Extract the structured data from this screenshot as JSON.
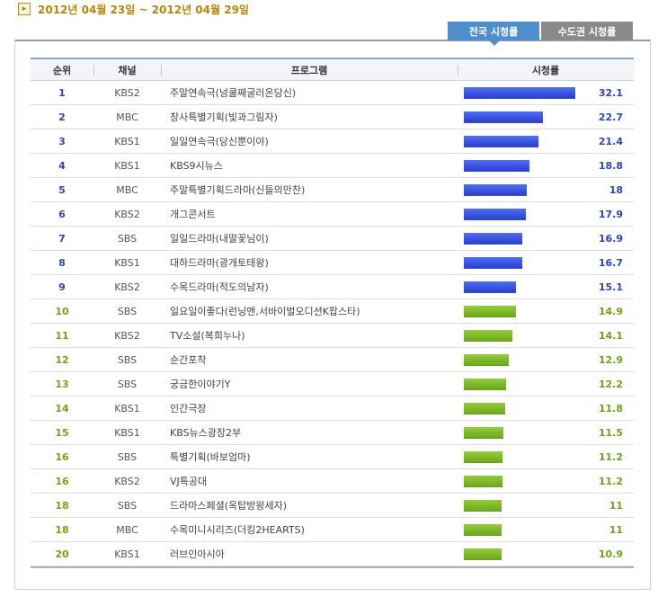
{
  "period": "2012년 04월 23일 ~ 2012년 04월 29일",
  "tabs": [
    {
      "label": "전국 시청률",
      "active": true
    },
    {
      "label": "수도권 시청률",
      "active": false
    }
  ],
  "headers": {
    "rank": "순위",
    "channel": "채널",
    "program": "프로그램",
    "rating": "시청률"
  },
  "colors": {
    "top_bar": "#3150dd",
    "other_bar": "#82bb2c",
    "top_text": "#2d46b9",
    "other_text": "#6fa41a"
  },
  "rows": [
    {
      "rank": "1",
      "channel": "KBS2",
      "program": "주말연속극(넝쿨째굴러온당신)",
      "rating": "32.1",
      "value": 32.1
    },
    {
      "rank": "2",
      "channel": "MBC",
      "program": "창사특별기획(빛과그림자)",
      "rating": "22.7",
      "value": 22.7
    },
    {
      "rank": "3",
      "channel": "KBS1",
      "program": "일일연속극(당신뿐이야)",
      "rating": "21.4",
      "value": 21.4
    },
    {
      "rank": "4",
      "channel": "KBS1",
      "program": "KBS9시뉴스",
      "rating": "18.8",
      "value": 18.8
    },
    {
      "rank": "5",
      "channel": "MBC",
      "program": "주말특별기획드라마(신들의만찬)",
      "rating": "18",
      "value": 18
    },
    {
      "rank": "6",
      "channel": "KBS2",
      "program": "개그콘서트",
      "rating": "17.9",
      "value": 17.9
    },
    {
      "rank": "7",
      "channel": "SBS",
      "program": "일일드라마(내딸꽃님이)",
      "rating": "16.9",
      "value": 16.9
    },
    {
      "rank": "8",
      "channel": "KBS1",
      "program": "대하드라마(광개토태왕)",
      "rating": "16.7",
      "value": 16.7
    },
    {
      "rank": "9",
      "channel": "KBS2",
      "program": "수목드라마(적도의남자)",
      "rating": "15.1",
      "value": 15.1
    },
    {
      "rank": "10",
      "channel": "SBS",
      "program": "일요일이좋다(런닝맨,서바이벌오디션K팝스타)",
      "rating": "14.9",
      "value": 14.9
    },
    {
      "rank": "11",
      "channel": "KBS2",
      "program": "TV소설(복희누나)",
      "rating": "14.1",
      "value": 14.1
    },
    {
      "rank": "12",
      "channel": "SBS",
      "program": "순간포착",
      "rating": "12.9",
      "value": 12.9
    },
    {
      "rank": "13",
      "channel": "SBS",
      "program": "궁금한이야기Y",
      "rating": "12.2",
      "value": 12.2
    },
    {
      "rank": "14",
      "channel": "KBS1",
      "program": "인간극장",
      "rating": "11.8",
      "value": 11.8
    },
    {
      "rank": "15",
      "channel": "KBS1",
      "program": "KBS뉴스광장2부",
      "rating": "11.5",
      "value": 11.5
    },
    {
      "rank": "16",
      "channel": "SBS",
      "program": "특별기획(바보엄마)",
      "rating": "11.2",
      "value": 11.2
    },
    {
      "rank": "16",
      "channel": "KBS2",
      "program": "VJ특공대",
      "rating": "11.2",
      "value": 11.2
    },
    {
      "rank": "18",
      "channel": "SBS",
      "program": "드라마스페셜(옥탑방왕세자)",
      "rating": "11",
      "value": 11
    },
    {
      "rank": "18",
      "channel": "MBC",
      "program": "수목미니시리즈(더킹2HEARTS)",
      "rating": "11",
      "value": 11
    },
    {
      "rank": "20",
      "channel": "KBS1",
      "program": "러브인아시아",
      "rating": "10.9",
      "value": 10.9
    }
  ]
}
